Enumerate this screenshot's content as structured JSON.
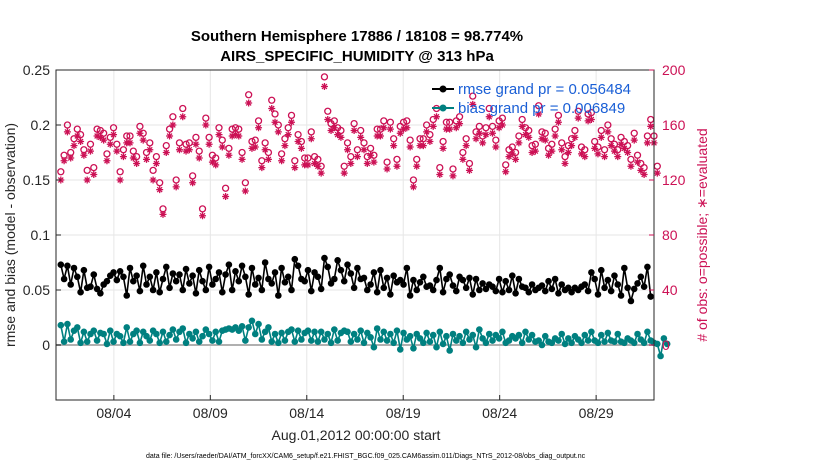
{
  "chart_data": {
    "type": "line",
    "title_line1": "Southern Hemisphere 17886 / 18108 = 98.774%",
    "title_line2": "AIRS_SPECIFIC_HUMIDITY @ 313 hPa",
    "xlabel": "Aug.01,2012 00:00:00 start",
    "ylabel_left": "rmse and bias (model - observation)",
    "ylabel_right": "# of obs: o=possible; ∗=evaluated",
    "footer": "data file: /Users/raeder/DAI/ATM_forcXX/CAM6_setup/f.e21.FHIST_BGC.f09_025.CAM6assim.011/Diags_NTrS_2012-08/obs_diag_output.nc",
    "xlim": [
      1.0,
      32.0
    ],
    "ylim_left": [
      -0.05,
      0.25
    ],
    "ylim_right": [
      -40,
      200
    ],
    "left_ticks": [
      0,
      0.05,
      0.1,
      0.15,
      0.2,
      0.25
    ],
    "left_tick_labels": [
      "0",
      "0.05",
      "0.1",
      "0.15",
      "0.2",
      "0.25"
    ],
    "right_ticks": [
      0,
      40,
      80,
      120,
      160,
      200
    ],
    "right_tick_labels": [
      "0",
      "40",
      "80",
      "120",
      "160",
      "200"
    ],
    "x_ticks": [
      4,
      9,
      14,
      19,
      24,
      29
    ],
    "x_tick_labels": [
      "08/04",
      "08/09",
      "08/14",
      "08/19",
      "08/24",
      "08/29"
    ],
    "colors": {
      "rmse": "#000000",
      "bias": "#008080",
      "obs": "#cc1155",
      "zero": "#b0b0b0",
      "legend_text": "#1a5fd6"
    },
    "legend": [
      {
        "name": "rmse",
        "label": "rmse grand pr = 0.056484"
      },
      {
        "name": "bias",
        "label": "bias grand pr = 0.006849"
      }
    ],
    "series": [
      {
        "name": "rmse",
        "axis": "left",
        "values": [
          0.073,
          0.06,
          0.072,
          0.055,
          0.07,
          0.062,
          0.048,
          0.068,
          0.052,
          0.053,
          0.064,
          0.051,
          0.047,
          0.055,
          0.058,
          0.063,
          0.066,
          0.059,
          0.067,
          0.062,
          0.045,
          0.07,
          0.058,
          0.063,
          0.049,
          0.072,
          0.055,
          0.062,
          0.05,
          0.066,
          0.048,
          0.06,
          0.071,
          0.052,
          0.065,
          0.058,
          0.064,
          0.05,
          0.069,
          0.056,
          0.063,
          0.047,
          0.068,
          0.058,
          0.05,
          0.071,
          0.055,
          0.06,
          0.066,
          0.048,
          0.064,
          0.073,
          0.05,
          0.067,
          0.058,
          0.072,
          0.062,
          0.046,
          0.07,
          0.055,
          0.061,
          0.05,
          0.075,
          0.06,
          0.056,
          0.066,
          0.045,
          0.07,
          0.057,
          0.062,
          0.05,
          0.078,
          0.072,
          0.06,
          0.058,
          0.068,
          0.049,
          0.066,
          0.062,
          0.051,
          0.079,
          0.071,
          0.056,
          0.06,
          0.077,
          0.068,
          0.058,
          0.073,
          0.065,
          0.052,
          0.07,
          0.06,
          0.061,
          0.05,
          0.055,
          0.066,
          0.048,
          0.068,
          0.052,
          0.061,
          0.046,
          0.063,
          0.057,
          0.059,
          0.055,
          0.07,
          0.045,
          0.059,
          0.05,
          0.057,
          0.062,
          0.053,
          0.054,
          0.05,
          0.059,
          0.07,
          0.048,
          0.06,
          0.064,
          0.054,
          0.049,
          0.062,
          0.059,
          0.052,
          0.061,
          0.046,
          0.06,
          0.05,
          0.056,
          0.051,
          0.055,
          0.053,
          0.049,
          0.06,
          0.048,
          0.058,
          0.05,
          0.063,
          0.047,
          0.06,
          0.053,
          0.052,
          0.048,
          0.055,
          0.05,
          0.052,
          0.054,
          0.049,
          0.058,
          0.051,
          0.06,
          0.047,
          0.055,
          0.05,
          0.052,
          0.048,
          0.052,
          0.05,
          0.053,
          0.055,
          0.049,
          0.066,
          0.06,
          0.046,
          0.068,
          0.052,
          0.059,
          0.049,
          0.063,
          0.055,
          0.045,
          0.07,
          0.052,
          0.04,
          0.051,
          0.056,
          0.062,
          0.053,
          0.071,
          0.044
        ]
      },
      {
        "name": "bias",
        "axis": "left",
        "values": [
          0.018,
          0.003,
          0.019,
          0.005,
          0.013,
          0.016,
          0.002,
          0.012,
          0.003,
          0.01,
          0.013,
          0.004,
          0.011,
          0.01,
          0.001,
          0.013,
          0.003,
          0.01,
          0.008,
          0.002,
          0.016,
          0.003,
          0.01,
          0.013,
          0.002,
          0.012,
          0.008,
          0.004,
          0.013,
          0.01,
          0.002,
          0.012,
          0.003,
          0.009,
          0.014,
          0.005,
          0.012,
          0.015,
          0.002,
          0.01,
          0.006,
          0.012,
          0.003,
          0.008,
          0.014,
          0.01,
          0.004,
          0.012,
          0.003,
          0.013,
          0.014,
          0.015,
          0.014,
          0.016,
          0.013,
          0.017,
          0.004,
          0.016,
          0.022,
          0.01,
          0.019,
          0.005,
          0.012,
          0.016,
          0.003,
          0.01,
          0.002,
          0.011,
          0.004,
          0.012,
          0.014,
          0.003,
          0.013,
          0.005,
          0.011,
          0.013,
          0.004,
          0.012,
          0.003,
          0.012,
          0.005,
          0.01,
          0.002,
          0.014,
          0.004,
          0.011,
          0.013,
          0.012,
          0.003,
          0.01,
          0.005,
          0.013,
          0.002,
          0.011,
          0.007,
          -0.002,
          0.015,
          0.005,
          0.012,
          0.004,
          0.01,
          0.002,
          0.013,
          -0.004,
          0.011,
          0.005,
          0.008,
          -0.003,
          0.01,
          0.006,
          0.002,
          0.011,
          0.003,
          0.009,
          -0.002,
          0.012,
          0.001,
          0.008,
          -0.005,
          0.01,
          0.004,
          0.008,
          0.002,
          0.012,
          0.005,
          0.009,
          -0.002,
          0.014,
          0.006,
          0.002,
          0.01,
          0.004,
          0.009,
          0.006,
          0.012,
          0.002,
          0.004,
          0.008,
          0.006,
          0.009,
          0.002,
          0.012,
          0.005,
          0.009,
          0.003,
          0.004,
          0.0,
          0.008,
          0.003,
          0.002,
          0.006,
          0.004,
          0.01,
          0.001,
          0.006,
          0.002,
          0.008,
          0.005,
          0.002,
          0.009,
          0.004,
          0.012,
          0.004,
          0.002,
          0.009,
          0.003,
          0.011,
          0.004,
          0.003,
          0.01,
          0.003,
          0.002,
          0.006,
          0.004,
          0.002,
          0.01,
          0.005,
          0.002,
          0.012,
          0.004,
          0.002,
          0.001,
          -0.01,
          0.006,
          0.001
        ]
      },
      {
        "name": "obs_possible",
        "axis": "right",
        "marker": "circle",
        "values": [
          126,
          138,
          160,
          140,
          150,
          157,
          153,
          142,
          127,
          146,
          129,
          157,
          156,
          154,
          139,
          151,
          158,
          146,
          126,
          142,
          152,
          152,
          141,
          137,
          159,
          154,
          140,
          147,
          127,
          137,
          118,
          99,
          145,
          157,
          166,
          120,
          147,
          172,
          146,
          147,
          123,
          151,
          141,
          99,
          165,
          151,
          138,
          136,
          158,
          149,
          114,
          143,
          157,
          158,
          157,
          140,
          118,
          182,
          148,
          149,
          163,
          134,
          147,
          140,
          178,
          168,
          160,
          139,
          150,
          158,
          167,
          134,
          153,
          148,
          136,
          136,
          155,
          137,
          135,
          130,
          195,
          170,
          161,
          163,
          158,
          156,
          130,
          147,
          137,
          161,
          142,
          156,
          147,
          137,
          143,
          138,
          157,
          157,
          163,
          133,
          162,
          150,
          135,
          159,
          162,
          163,
          149,
          120,
          135,
          150,
          150,
          160,
          153,
          164,
          172,
          129,
          148,
          162,
          162,
          128,
          163,
          166,
          140,
          150,
          132,
          181,
          155,
          159,
          152,
          158,
          172,
          159,
          149,
          163,
          165,
          131,
          142,
          144,
          140,
          152,
          164,
          158,
          156,
          145,
          146,
          174,
          155,
          154,
          143,
          146,
          157,
          167,
          147,
          137,
          145,
          150,
          156,
          170,
          144,
          142,
          168,
          169,
          148,
          144,
          156,
          142,
          160,
          150,
          146,
          142,
          151,
          148,
          145,
          135,
          154,
          138,
          132,
          129,
          152,
          164,
          152,
          130
        ]
      },
      {
        "name": "obs_evaluated",
        "axis": "right",
        "marker": "star",
        "values": [
          120,
          134,
          155,
          136,
          145,
          152,
          148,
          138,
          120,
          141,
          124,
          152,
          151,
          149,
          134,
          146,
          153,
          141,
          120,
          137,
          147,
          147,
          136,
          132,
          154,
          149,
          135,
          142,
          120,
          132,
          113,
          95,
          140,
          152,
          160,
          115,
          142,
          166,
          141,
          142,
          118,
          146,
          136,
          94,
          160,
          146,
          133,
          131,
          153,
          144,
          108,
          138,
          152,
          153,
          152,
          135,
          112,
          176,
          143,
          144,
          158,
          129,
          142,
          135,
          172,
          162,
          155,
          134,
          145,
          153,
          162,
          129,
          148,
          143,
          131,
          131,
          150,
          132,
          130,
          125,
          188,
          164,
          156,
          158,
          153,
          151,
          125,
          142,
          132,
          156,
          137,
          151,
          142,
          132,
          138,
          133,
          152,
          152,
          158,
          128,
          157,
          145,
          130,
          154,
          157,
          158,
          144,
          115,
          130,
          145,
          145,
          155,
          148,
          159,
          166,
          124,
          143,
          157,
          157,
          123,
          158,
          161,
          135,
          145,
          127,
          175,
          150,
          154,
          147,
          153,
          166,
          154,
          144,
          158,
          160,
          126,
          137,
          139,
          135,
          147,
          159,
          153,
          151,
          140,
          141,
          168,
          150,
          149,
          138,
          141,
          152,
          162,
          142,
          132,
          140,
          145,
          151,
          165,
          139,
          137,
          163,
          164,
          143,
          139,
          151,
          137,
          155,
          145,
          141,
          137,
          146,
          143,
          140,
          130,
          149,
          133,
          127,
          124,
          147,
          159,
          147,
          125
        ]
      }
    ]
  }
}
